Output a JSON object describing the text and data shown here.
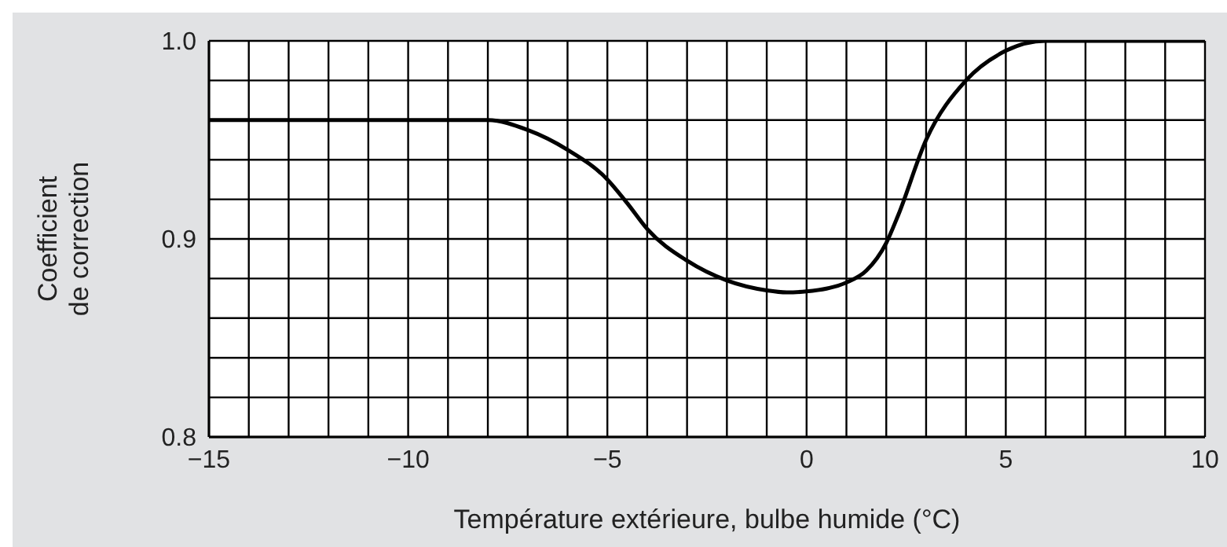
{
  "chart_data": {
    "type": "line",
    "xlabel": "Température extérieure, bulbe humide (°C)",
    "ylabel": "Coefficient\nde correction",
    "x": [
      -15,
      -12,
      -10,
      -8,
      -7,
      -6,
      -5,
      -4.5,
      -4,
      -3,
      -2,
      -1,
      -0.5,
      0,
      1,
      1.5,
      2,
      2.3,
      3,
      4,
      5,
      6,
      8,
      10
    ],
    "series": [
      {
        "color": "#000000",
        "values": [
          0.96,
          0.96,
          0.96,
          0.96,
          0.955,
          0.945,
          0.93,
          0.918,
          0.905,
          0.889,
          0.879,
          0.874,
          0.873,
          0.8735,
          0.878,
          0.884,
          0.898,
          0.912,
          0.95,
          0.98,
          0.995,
          1.0,
          1.0,
          1.0
        ]
      }
    ],
    "xlim": [
      -15,
      10
    ],
    "ylim": [
      0.8,
      1.0
    ],
    "xticks": [
      -15,
      {
        "value": -14,
        "label": null
      },
      {
        "value": -13,
        "label": null
      },
      {
        "value": -12,
        "label": null
      },
      {
        "value": -11,
        "label": null
      },
      -10,
      {
        "value": -9,
        "label": null
      },
      {
        "value": -8,
        "label": null
      },
      {
        "value": -7,
        "label": null
      },
      {
        "value": -6,
        "label": null
      },
      -5,
      {
        "value": -4,
        "label": null
      },
      {
        "value": -3,
        "label": null
      },
      {
        "value": -2,
        "label": null
      },
      {
        "value": -1,
        "label": null
      },
      0,
      {
        "value": 1,
        "label": null
      },
      {
        "value": 2,
        "label": null
      },
      {
        "value": 3,
        "label": null
      },
      {
        "value": 4,
        "label": null
      },
      5,
      {
        "value": 6,
        "label": null
      },
      {
        "value": 7,
        "label": null
      },
      {
        "value": 8,
        "label": null
      },
      {
        "value": 9,
        "label": null
      },
      10
    ],
    "yticks": [
      0.8,
      {
        "value": 0.82,
        "label": null
      },
      {
        "value": 0.84,
        "label": null
      },
      {
        "value": 0.86,
        "label": null
      },
      {
        "value": 0.88,
        "label": null
      },
      0.9,
      {
        "value": 0.92,
        "label": null
      },
      {
        "value": 0.94,
        "label": null
      },
      {
        "value": 0.96,
        "label": null
      },
      {
        "value": 0.98,
        "label": null
      },
      {
        "value": 1.0,
        "label": "1.0"
      }
    ],
    "grid": true,
    "legend": false,
    "marker": "none",
    "line_style": "solid"
  }
}
